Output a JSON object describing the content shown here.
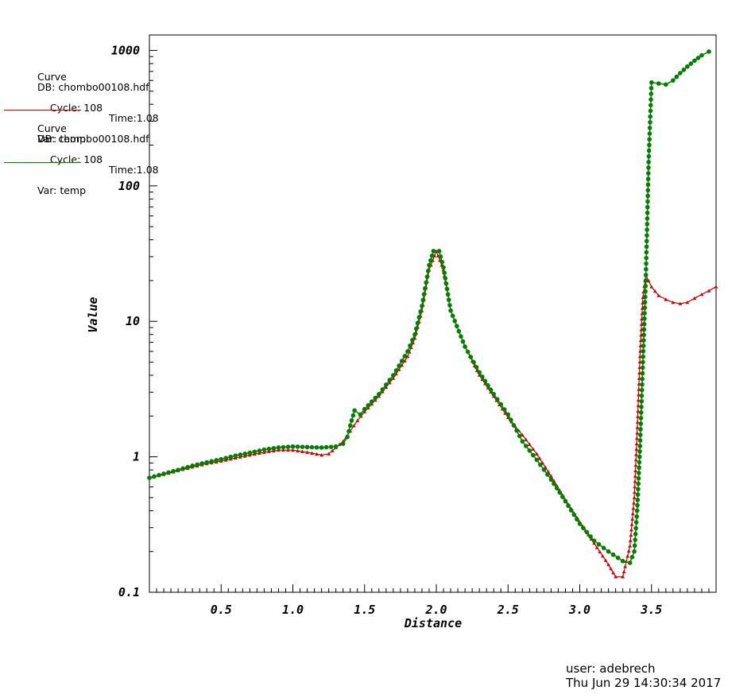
{
  "legend": [
    {
      "title": "Curve",
      "db": "DB: chombo00108.hdf",
      "cycle": "Cycle: 108",
      "time": "Time:1.08",
      "var": "Var: temp",
      "color": "#d40000"
    },
    {
      "title": "Curve",
      "db": "DB: chombo00108.hdf",
      "cycle": "Cycle: 108",
      "time": "Time:1.08",
      "var": "Var: temp",
      "color": "#008000"
    }
  ],
  "footer": {
    "user": "user: adebrech",
    "date": "Thu Jun 29 14:30:34 2017"
  },
  "chart_data": {
    "type": "line",
    "xlabel": "Distance",
    "ylabel": "Value",
    "y_scale": "log",
    "xlim": [
      0.0,
      3.95
    ],
    "ylim": [
      0.1,
      1300
    ],
    "x_ticks": [
      0.5,
      1.0,
      1.5,
      2.0,
      2.5,
      3.0,
      3.5
    ],
    "x_tick_labels": [
      "0.5",
      "1.0",
      "1.5",
      "2.0",
      "2.5",
      "3.0",
      "3.5"
    ],
    "y_ticks": [
      0.1,
      1,
      10,
      100,
      1000
    ],
    "y_tick_labels": [
      "0.1",
      "1",
      "10",
      "100",
      "1000"
    ],
    "series": [
      {
        "color": "#d40000",
        "marker": "triangle",
        "points": [
          [
            0.0,
            0.7
          ],
          [
            0.1,
            0.74
          ],
          [
            0.2,
            0.79
          ],
          [
            0.3,
            0.84
          ],
          [
            0.4,
            0.89
          ],
          [
            0.5,
            0.93
          ],
          [
            0.6,
            0.98
          ],
          [
            0.7,
            1.03
          ],
          [
            0.8,
            1.08
          ],
          [
            0.9,
            1.12
          ],
          [
            1.0,
            1.12
          ],
          [
            1.1,
            1.08
          ],
          [
            1.2,
            1.03
          ],
          [
            1.25,
            1.05
          ],
          [
            1.3,
            1.17
          ],
          [
            1.35,
            1.3
          ],
          [
            1.4,
            1.55
          ],
          [
            1.45,
            1.85
          ],
          [
            1.5,
            2.15
          ],
          [
            1.6,
            2.8
          ],
          [
            1.7,
            3.8
          ],
          [
            1.8,
            5.5
          ],
          [
            1.85,
            7.5
          ],
          [
            1.9,
            12
          ],
          [
            1.95,
            24
          ],
          [
            2.0,
            33
          ],
          [
            2.05,
            24
          ],
          [
            2.1,
            12
          ],
          [
            2.2,
            6.5
          ],
          [
            2.3,
            4.0
          ],
          [
            2.4,
            2.8
          ],
          [
            2.5,
            1.95
          ],
          [
            2.6,
            1.45
          ],
          [
            2.7,
            1.05
          ],
          [
            2.8,
            0.72
          ],
          [
            2.9,
            0.48
          ],
          [
            3.0,
            0.33
          ],
          [
            3.1,
            0.23
          ],
          [
            3.2,
            0.16
          ],
          [
            3.25,
            0.13
          ],
          [
            3.3,
            0.13
          ],
          [
            3.35,
            0.22
          ],
          [
            3.38,
            0.5
          ],
          [
            3.4,
            1.5
          ],
          [
            3.42,
            5.5
          ],
          [
            3.44,
            15
          ],
          [
            3.46,
            22
          ],
          [
            3.5,
            18
          ],
          [
            3.55,
            15.5
          ],
          [
            3.6,
            14.5
          ],
          [
            3.65,
            13.8
          ],
          [
            3.7,
            13.5
          ],
          [
            3.75,
            13.8
          ],
          [
            3.8,
            14.8
          ],
          [
            3.85,
            15.8
          ],
          [
            3.9,
            16.8
          ],
          [
            3.95,
            18
          ]
        ]
      },
      {
        "color": "#008000",
        "marker": "circle",
        "points": [
          [
            0.0,
            0.7
          ],
          [
            0.1,
            0.75
          ],
          [
            0.2,
            0.8
          ],
          [
            0.3,
            0.86
          ],
          [
            0.4,
            0.91
          ],
          [
            0.5,
            0.96
          ],
          [
            0.6,
            1.02
          ],
          [
            0.7,
            1.07
          ],
          [
            0.8,
            1.13
          ],
          [
            0.9,
            1.17
          ],
          [
            1.0,
            1.19
          ],
          [
            1.1,
            1.18
          ],
          [
            1.2,
            1.17
          ],
          [
            1.3,
            1.19
          ],
          [
            1.35,
            1.25
          ],
          [
            1.38,
            1.4
          ],
          [
            1.4,
            1.7
          ],
          [
            1.43,
            2.2
          ],
          [
            1.47,
            2.05
          ],
          [
            1.5,
            2.25
          ],
          [
            1.6,
            2.9
          ],
          [
            1.7,
            4.0
          ],
          [
            1.8,
            6.0
          ],
          [
            1.85,
            8.0
          ],
          [
            1.9,
            13
          ],
          [
            1.95,
            26
          ],
          [
            1.98,
            33
          ],
          [
            2.02,
            33
          ],
          [
            2.05,
            25
          ],
          [
            2.1,
            12
          ],
          [
            2.2,
            6.5
          ],
          [
            2.3,
            4.2
          ],
          [
            2.4,
            2.9
          ],
          [
            2.5,
            2.05
          ],
          [
            2.6,
            1.3
          ],
          [
            2.7,
            0.95
          ],
          [
            2.8,
            0.68
          ],
          [
            2.9,
            0.47
          ],
          [
            3.0,
            0.32
          ],
          [
            3.1,
            0.24
          ],
          [
            3.2,
            0.2
          ],
          [
            3.3,
            0.17
          ],
          [
            3.35,
            0.165
          ],
          [
            3.38,
            0.2
          ],
          [
            3.4,
            0.4
          ],
          [
            3.42,
            1.2
          ],
          [
            3.44,
            5.0
          ],
          [
            3.46,
            20
          ],
          [
            3.48,
            150
          ],
          [
            3.5,
            580
          ],
          [
            3.55,
            570
          ],
          [
            3.6,
            560
          ],
          [
            3.65,
            600
          ],
          [
            3.7,
            680
          ],
          [
            3.75,
            760
          ],
          [
            3.8,
            840
          ],
          [
            3.85,
            920
          ],
          [
            3.9,
            980
          ]
        ]
      }
    ]
  }
}
